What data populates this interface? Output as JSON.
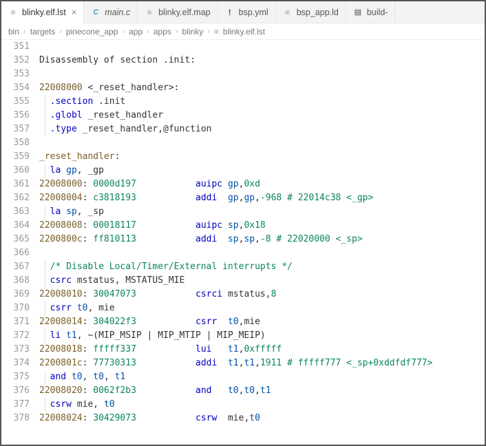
{
  "tabs": [
    {
      "label": "blinky.elf.lst",
      "icon": "file-icon",
      "active": true,
      "closeable": true,
      "italic": false
    },
    {
      "label": "main.c",
      "icon": "c-icon",
      "active": false,
      "closeable": false,
      "italic": true
    },
    {
      "label": "blinky.elf.map",
      "icon": "file-icon",
      "active": false,
      "closeable": false,
      "italic": false
    },
    {
      "label": "bsp.yml",
      "icon": "yaml-icon",
      "active": false,
      "closeable": false,
      "italic": false
    },
    {
      "label": "bsp_app.ld",
      "icon": "file-icon",
      "active": false,
      "closeable": false,
      "italic": false
    },
    {
      "label": "build-",
      "icon": "build-icon",
      "active": false,
      "closeable": false,
      "italic": false
    }
  ],
  "crumbs": [
    "bin",
    "targets",
    "pinecone_app",
    "app",
    "apps",
    "blinky",
    "blinky.elf.lst"
  ],
  "crumb_last_icon": "file-icon",
  "first_line_no": 351,
  "lines": [
    {
      "indent": 0,
      "segs": []
    },
    {
      "indent": 0,
      "segs": [
        [
          "Disassembly of section ",
          ""
        ],
        [
          ".",
          "tok-punc"
        ],
        [
          "init",
          ""
        ],
        [
          ":",
          ""
        ]
      ]
    },
    {
      "indent": 0,
      "segs": []
    },
    {
      "indent": 0,
      "segs": [
        [
          "22008000",
          "tok-addr"
        ],
        [
          " <",
          ""
        ],
        [
          "_reset_handler",
          ""
        ],
        [
          ">:",
          ""
        ]
      ]
    },
    {
      "indent": 1,
      "segs": [
        [
          "  ",
          ""
        ],
        [
          ".section",
          "tok-dir"
        ],
        [
          " ",
          ""
        ],
        [
          ".init",
          ""
        ]
      ]
    },
    {
      "indent": 1,
      "segs": [
        [
          "  ",
          ""
        ],
        [
          ".globl",
          "tok-dir"
        ],
        [
          " _reset_handler",
          ""
        ]
      ]
    },
    {
      "indent": 1,
      "segs": [
        [
          "  ",
          ""
        ],
        [
          ".type",
          "tok-dir"
        ],
        [
          " _reset_handler,",
          ""
        ],
        [
          "@function",
          ""
        ]
      ]
    },
    {
      "indent": 0,
      "segs": []
    },
    {
      "indent": 0,
      "segs": [
        [
          "_reset_handler",
          "tok-label"
        ],
        [
          ":",
          ""
        ]
      ]
    },
    {
      "indent": 1,
      "segs": [
        [
          "  ",
          ""
        ],
        [
          "la",
          "tok-mnem"
        ],
        [
          " ",
          ""
        ],
        [
          "gp",
          "tok-reg"
        ],
        [
          ", _gp",
          ""
        ]
      ]
    },
    {
      "indent": 0,
      "segs": [
        [
          "22008000",
          "tok-addr"
        ],
        [
          ": ",
          ""
        ],
        [
          "0000d197",
          "tok-hex"
        ],
        [
          "           ",
          ""
        ],
        [
          "auipc",
          "tok-mnem"
        ],
        [
          " ",
          ""
        ],
        [
          "gp",
          "tok-reg"
        ],
        [
          ",",
          ""
        ],
        [
          "0xd",
          "tok-num"
        ]
      ]
    },
    {
      "indent": 0,
      "segs": [
        [
          "22008004",
          "tok-addr"
        ],
        [
          ": ",
          ""
        ],
        [
          "c3818193",
          "tok-hex"
        ],
        [
          "           ",
          ""
        ],
        [
          "addi",
          "tok-mnem"
        ],
        [
          "  ",
          ""
        ],
        [
          "gp",
          "tok-reg"
        ],
        [
          ",",
          ""
        ],
        [
          "gp",
          "tok-reg"
        ],
        [
          ",",
          ""
        ],
        [
          "-968",
          "tok-neg"
        ],
        [
          " ",
          ""
        ],
        [
          "# 22014c38 <_gp>",
          "tok-comment"
        ]
      ]
    },
    {
      "indent": 1,
      "segs": [
        [
          "  ",
          ""
        ],
        [
          "la",
          "tok-mnem"
        ],
        [
          " ",
          ""
        ],
        [
          "sp",
          "tok-reg"
        ],
        [
          ", _sp",
          ""
        ]
      ]
    },
    {
      "indent": 0,
      "segs": [
        [
          "22008008",
          "tok-addr"
        ],
        [
          ": ",
          ""
        ],
        [
          "00018117",
          "tok-hex"
        ],
        [
          "           ",
          ""
        ],
        [
          "auipc",
          "tok-mnem"
        ],
        [
          " ",
          ""
        ],
        [
          "sp",
          "tok-reg"
        ],
        [
          ",",
          ""
        ],
        [
          "0x18",
          "tok-num"
        ]
      ]
    },
    {
      "indent": 0,
      "segs": [
        [
          "2200800c",
          "tok-addr"
        ],
        [
          ": ",
          ""
        ],
        [
          "ff810113",
          "tok-hex"
        ],
        [
          "           ",
          ""
        ],
        [
          "addi",
          "tok-mnem"
        ],
        [
          "  ",
          ""
        ],
        [
          "sp",
          "tok-reg"
        ],
        [
          ",",
          ""
        ],
        [
          "sp",
          "tok-reg"
        ],
        [
          ",",
          ""
        ],
        [
          "-8",
          "tok-neg"
        ],
        [
          " ",
          ""
        ],
        [
          "# 22020000 <_sp>",
          "tok-comment"
        ]
      ]
    },
    {
      "indent": 0,
      "segs": []
    },
    {
      "indent": 1,
      "segs": [
        [
          "  ",
          ""
        ],
        [
          "/* Disable Local/Timer/External interrupts */",
          "tok-comment"
        ]
      ]
    },
    {
      "indent": 1,
      "segs": [
        [
          "  ",
          ""
        ],
        [
          "csrc",
          "tok-mnem"
        ],
        [
          " mstatus, MSTATUS_MIE",
          ""
        ]
      ]
    },
    {
      "indent": 0,
      "segs": [
        [
          "22008010",
          "tok-addr"
        ],
        [
          ": ",
          ""
        ],
        [
          "30047073",
          "tok-hex"
        ],
        [
          "           ",
          ""
        ],
        [
          "csrci",
          "tok-mnem"
        ],
        [
          " mstatus,",
          ""
        ],
        [
          "8",
          "tok-num"
        ]
      ]
    },
    {
      "indent": 1,
      "segs": [
        [
          "  ",
          ""
        ],
        [
          "csrr",
          "tok-mnem"
        ],
        [
          " ",
          ""
        ],
        [
          "t0",
          "tok-reg"
        ],
        [
          ", mie",
          ""
        ]
      ]
    },
    {
      "indent": 0,
      "segs": [
        [
          "22008014",
          "tok-addr"
        ],
        [
          ": ",
          ""
        ],
        [
          "304022f3",
          "tok-hex"
        ],
        [
          "           ",
          ""
        ],
        [
          "csrr",
          "tok-mnem"
        ],
        [
          "  ",
          ""
        ],
        [
          "t0",
          "tok-reg"
        ],
        [
          ",mie",
          ""
        ]
      ]
    },
    {
      "indent": 1,
      "segs": [
        [
          "  ",
          ""
        ],
        [
          "li",
          "tok-mnem"
        ],
        [
          " ",
          ""
        ],
        [
          "t1",
          "tok-reg"
        ],
        [
          ", ~(MIP_MSIP | MIP_MTIP | MIP_MEIP)",
          ""
        ]
      ]
    },
    {
      "indent": 0,
      "segs": [
        [
          "22008018",
          "tok-addr"
        ],
        [
          ": ",
          ""
        ],
        [
          "fffff337",
          "tok-hex"
        ],
        [
          "           ",
          ""
        ],
        [
          "lui",
          "tok-mnem"
        ],
        [
          "   ",
          ""
        ],
        [
          "t1",
          "tok-reg"
        ],
        [
          ",",
          ""
        ],
        [
          "0xfffff",
          "tok-num"
        ]
      ]
    },
    {
      "indent": 0,
      "segs": [
        [
          "2200801c",
          "tok-addr"
        ],
        [
          ": ",
          ""
        ],
        [
          "77730313",
          "tok-hex"
        ],
        [
          "           ",
          ""
        ],
        [
          "addi",
          "tok-mnem"
        ],
        [
          "  ",
          ""
        ],
        [
          "t1",
          "tok-reg"
        ],
        [
          ",",
          ""
        ],
        [
          "t1",
          "tok-reg"
        ],
        [
          ",",
          ""
        ],
        [
          "1911",
          "tok-num"
        ],
        [
          " ",
          ""
        ],
        [
          "# fffff777 <_sp+0xddfdf777>",
          "tok-comment"
        ]
      ]
    },
    {
      "indent": 1,
      "segs": [
        [
          "  ",
          ""
        ],
        [
          "and",
          "tok-mnem"
        ],
        [
          " ",
          ""
        ],
        [
          "t0",
          "tok-reg"
        ],
        [
          ", ",
          ""
        ],
        [
          "t0",
          "tok-reg"
        ],
        [
          ", ",
          ""
        ],
        [
          "t1",
          "tok-reg"
        ]
      ]
    },
    {
      "indent": 0,
      "segs": [
        [
          "22008020",
          "tok-addr"
        ],
        [
          ": ",
          ""
        ],
        [
          "0062f2b3",
          "tok-hex"
        ],
        [
          "           ",
          ""
        ],
        [
          "and",
          "tok-mnem"
        ],
        [
          "   ",
          ""
        ],
        [
          "t0",
          "tok-reg"
        ],
        [
          ",",
          ""
        ],
        [
          "t0",
          "tok-reg"
        ],
        [
          ",",
          ""
        ],
        [
          "t1",
          "tok-reg"
        ]
      ]
    },
    {
      "indent": 1,
      "segs": [
        [
          "  ",
          ""
        ],
        [
          "csrw",
          "tok-mnem"
        ],
        [
          " mie, ",
          ""
        ],
        [
          "t0",
          "tok-reg"
        ]
      ]
    },
    {
      "indent": 0,
      "segs": [
        [
          "22008024",
          "tok-addr"
        ],
        [
          ": ",
          ""
        ],
        [
          "30429073",
          "tok-hex"
        ],
        [
          "           ",
          ""
        ],
        [
          "csrw",
          "tok-mnem"
        ],
        [
          "  mie,",
          ""
        ],
        [
          "t0",
          "tok-reg"
        ]
      ]
    }
  ],
  "icons": {
    "file-icon": "≡",
    "c-icon": "C",
    "yaml-icon": "!",
    "build-icon": "▤"
  }
}
